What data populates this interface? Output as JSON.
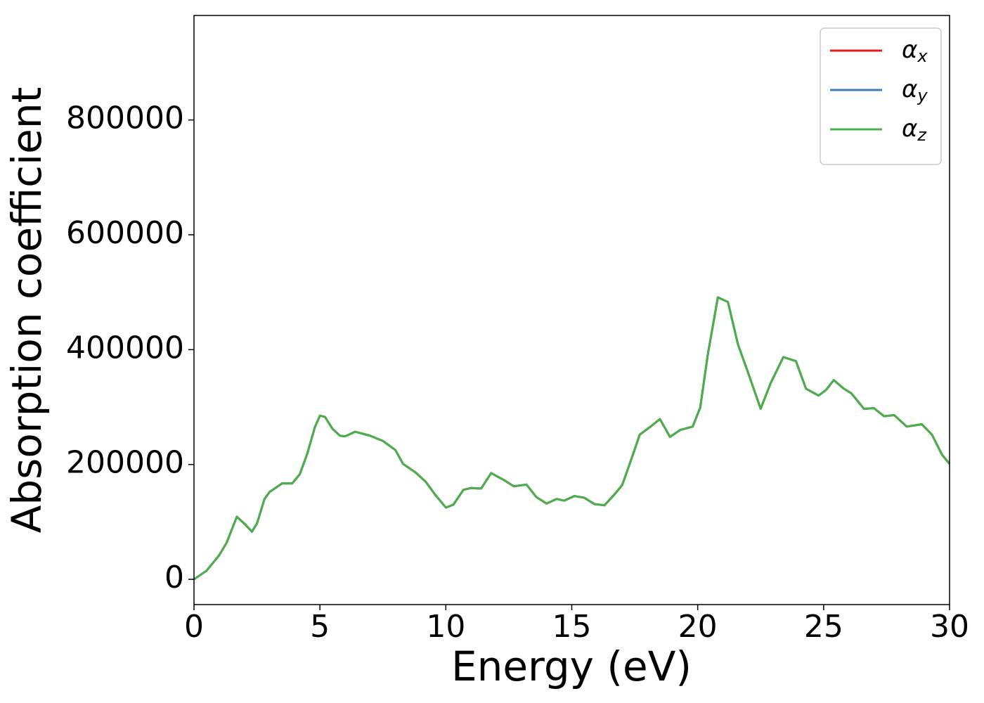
{
  "chart_data": {
    "type": "line",
    "xlabel": "Energy (eV)",
    "ylabel": "Absorption coefficient",
    "x": [
      0,
      0.5,
      1.0,
      1.3,
      1.7,
      2.0,
      2.3,
      2.5,
      2.8,
      3.0,
      3.5,
      3.9,
      4.2,
      4.5,
      4.8,
      5.0,
      5.2,
      5.5,
      5.8,
      6.0,
      6.4,
      7.0,
      7.5,
      8.0,
      8.3,
      8.8,
      9.2,
      9.6,
      10.0,
      10.3,
      10.7,
      11.0,
      11.4,
      11.8,
      12.3,
      12.7,
      13.2,
      13.6,
      14.0,
      14.4,
      14.7,
      15.1,
      15.5,
      15.9,
      16.3,
      16.7,
      17.0,
      17.3,
      17.7,
      18.1,
      18.5,
      18.9,
      19.3,
      19.8,
      20.1,
      20.4,
      20.8,
      21.2,
      21.6,
      22.0,
      22.5,
      22.9,
      23.4,
      23.9,
      24.3,
      24.8,
      25.1,
      25.4,
      25.8,
      26.1,
      26.6,
      27.0,
      27.4,
      27.8,
      28.3,
      28.9,
      29.3,
      29.7,
      30.0
    ],
    "series": [
      {
        "name": "αx",
        "color": "#e41a1c",
        "values": [
          0,
          15000,
          42000,
          64000,
          109000,
          97000,
          83000,
          97000,
          140000,
          152000,
          167000,
          167000,
          183000,
          219000,
          265000,
          285000,
          283000,
          262000,
          250000,
          249000,
          257000,
          250000,
          241000,
          225000,
          201000,
          186000,
          170000,
          146000,
          125000,
          130000,
          156000,
          159000,
          158000,
          185000,
          173000,
          162000,
          165000,
          143000,
          132000,
          140000,
          137000,
          145000,
          142000,
          131000,
          129000,
          148000,
          164000,
          201000,
          252000,
          265000,
          279000,
          248000,
          260000,
          266000,
          299000,
          391000,
          491000,
          483000,
          409000,
          360000,
          297000,
          342000,
          387000,
          380000,
          332000,
          320000,
          330000,
          347000,
          332000,
          324000,
          297000,
          298000,
          284000,
          286000,
          266000,
          270000,
          252000,
          217000,
          201000
        ]
      },
      {
        "name": "αy",
        "color": "#377eb8",
        "values": [
          0,
          15000,
          42000,
          64000,
          109000,
          97000,
          83000,
          97000,
          140000,
          152000,
          167000,
          167000,
          183000,
          219000,
          265000,
          285000,
          283000,
          262000,
          250000,
          249000,
          257000,
          250000,
          241000,
          225000,
          201000,
          186000,
          170000,
          146000,
          125000,
          130000,
          156000,
          159000,
          158000,
          185000,
          173000,
          162000,
          165000,
          143000,
          132000,
          140000,
          137000,
          145000,
          142000,
          131000,
          129000,
          148000,
          164000,
          201000,
          252000,
          265000,
          279000,
          248000,
          260000,
          266000,
          299000,
          391000,
          491000,
          483000,
          409000,
          360000,
          297000,
          342000,
          387000,
          380000,
          332000,
          320000,
          330000,
          347000,
          332000,
          324000,
          297000,
          298000,
          284000,
          286000,
          266000,
          270000,
          252000,
          217000,
          201000
        ]
      },
      {
        "name": "αz",
        "color": "#4daf4a",
        "values": [
          0,
          15000,
          42000,
          64000,
          109000,
          97000,
          83000,
          97000,
          140000,
          152000,
          167000,
          167000,
          183000,
          219000,
          265000,
          285000,
          283000,
          262000,
          250000,
          249000,
          257000,
          250000,
          241000,
          225000,
          201000,
          186000,
          170000,
          146000,
          125000,
          130000,
          156000,
          159000,
          158000,
          185000,
          173000,
          162000,
          165000,
          143000,
          132000,
          140000,
          137000,
          145000,
          142000,
          131000,
          129000,
          148000,
          164000,
          201000,
          252000,
          265000,
          279000,
          248000,
          260000,
          266000,
          299000,
          391000,
          491000,
          483000,
          409000,
          360000,
          297000,
          342000,
          387000,
          380000,
          332000,
          320000,
          330000,
          347000,
          332000,
          324000,
          297000,
          298000,
          284000,
          286000,
          266000,
          270000,
          252000,
          217000,
          201000
        ]
      }
    ],
    "xlim": [
      0,
      30
    ],
    "xticks": [
      0,
      5,
      10,
      15,
      20,
      25,
      30
    ],
    "ylim": [
      -44000,
      982000
    ],
    "yticks": [
      0,
      200000,
      400000,
      600000,
      800000
    ],
    "legend": "upper right"
  }
}
